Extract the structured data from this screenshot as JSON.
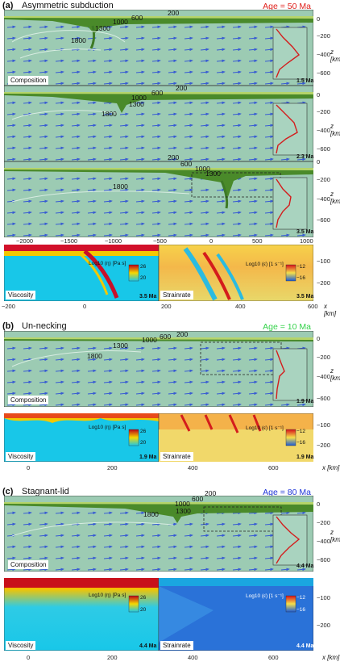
{
  "panels": {
    "a": {
      "label": "(a)",
      "title": "Asymmetric subduction",
      "age": "Age = 50 Ma",
      "age_color": "#e0201b",
      "composition_label": "Composition",
      "times": [
        "1.5 Ma",
        "2.3 Ma",
        "3.5 Ma"
      ],
      "isotherms_1": [
        "200",
        "600",
        "1000",
        "1300",
        "1800"
      ],
      "isotherms_2": [
        "200",
        "600",
        "1000",
        "1300",
        "1800"
      ],
      "isotherms_3": [
        "200",
        "600",
        "1000",
        "1300",
        "1800"
      ],
      "viscosity_label": "Viscosity",
      "strainrate_label": "Strainrate",
      "zoom_time": "3.5 Ma"
    },
    "b": {
      "label": "(b)",
      "title": "Un-necking",
      "age": "Age = 10 Ma",
      "age_color": "#34d24a",
      "composition_label": "Composition",
      "time": "1.9 Ma",
      "isotherms": [
        "200",
        "600",
        "1000",
        "1300",
        "1800"
      ],
      "viscosity_label": "Viscosity",
      "strainrate_label": "Strainrate",
      "zoom_time": "1.9 Ma"
    },
    "c": {
      "label": "(c)",
      "title": "Stagnant-lid",
      "age": "Age = 80 Ma",
      "age_color": "#1f35d8",
      "composition_label": "Composition",
      "time": "4.4 Ma",
      "isotherms": [
        "200",
        "600",
        "1000",
        "1300",
        "1800"
      ],
      "viscosity_label": "Viscosity",
      "strainrate_label": "Strainrate",
      "zoom_time": "4.4 Ma"
    }
  },
  "axes": {
    "x_km_label": "x [km]",
    "z_km_label": "z [km]",
    "main_x_ticks": [
      "−2000",
      "−1500",
      "−1000",
      "−500",
      "0",
      "500",
      "1000"
    ],
    "main_z_ticks": [
      "0",
      "−200",
      "−400",
      "−600"
    ],
    "zoom_x_ticks_a": [
      "−200",
      "0",
      "200",
      "400",
      "600"
    ],
    "zoom_x_ticks_bc": [
      "0",
      "200",
      "400",
      "600"
    ],
    "zoom_z_ticks": [
      "−100",
      "−200"
    ]
  },
  "inset": {
    "depth_label": "Depth [km]",
    "stress_ticks": [
      "0",
      "300",
      "600"
    ],
    "depth_ticks": [
      "0",
      "−20",
      "−40"
    ],
    "unit_label": "[MPa]",
    "sigma_label": "σ₂nd"
  },
  "colorbars": {
    "viscosity_title": "Log10 (η) [Pa s]",
    "viscosity_ticks": [
      "26",
      "24",
      "22",
      "20"
    ],
    "strainrate_title": "Log10 (ε̇) [1 s⁻¹]",
    "strainrate_ticks": [
      "−12",
      "−14",
      "−16"
    ]
  }
}
